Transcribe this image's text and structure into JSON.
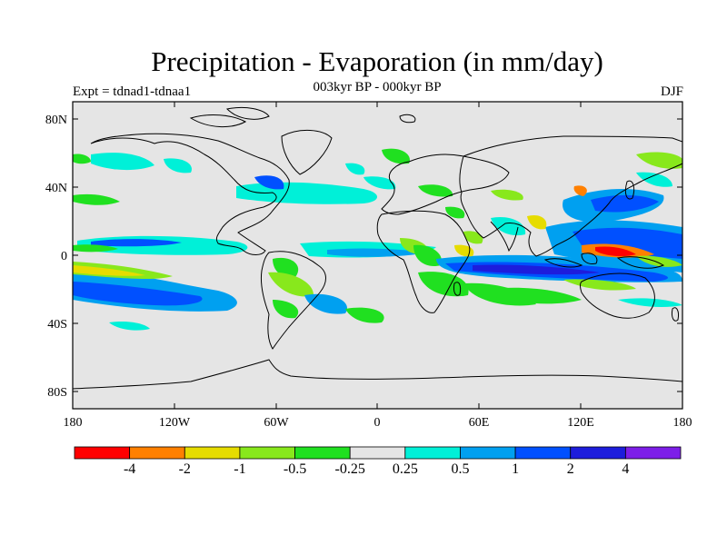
{
  "title": "Precipitation - Evaporation (in mm/day)",
  "subtitle": "003kyr BP - 000kyr BP",
  "experiment": "Expt = tdnad1-tdnaa1",
  "season": "DJF",
  "map": {
    "lat_labels": [
      "80N",
      "40N",
      "0",
      "40S",
      "80S"
    ],
    "lon_labels": [
      "180",
      "120W",
      "60W",
      "0",
      "60E",
      "120E",
      "180"
    ],
    "land_color": "#e5e5e5"
  },
  "colorbar": {
    "colors": [
      "#ff0000",
      "#ff8000",
      "#e6dc00",
      "#88e81c",
      "#20e020",
      "#e5e5e5",
      "#00f0d8",
      "#00a0f0",
      "#0050ff",
      "#1d1ddc",
      "#7d1ee8"
    ],
    "labels": [
      "-4",
      "-2",
      "-1",
      "-0.5",
      "-0.25",
      "0.25",
      "0.5",
      "1",
      "2",
      "4"
    ]
  }
}
